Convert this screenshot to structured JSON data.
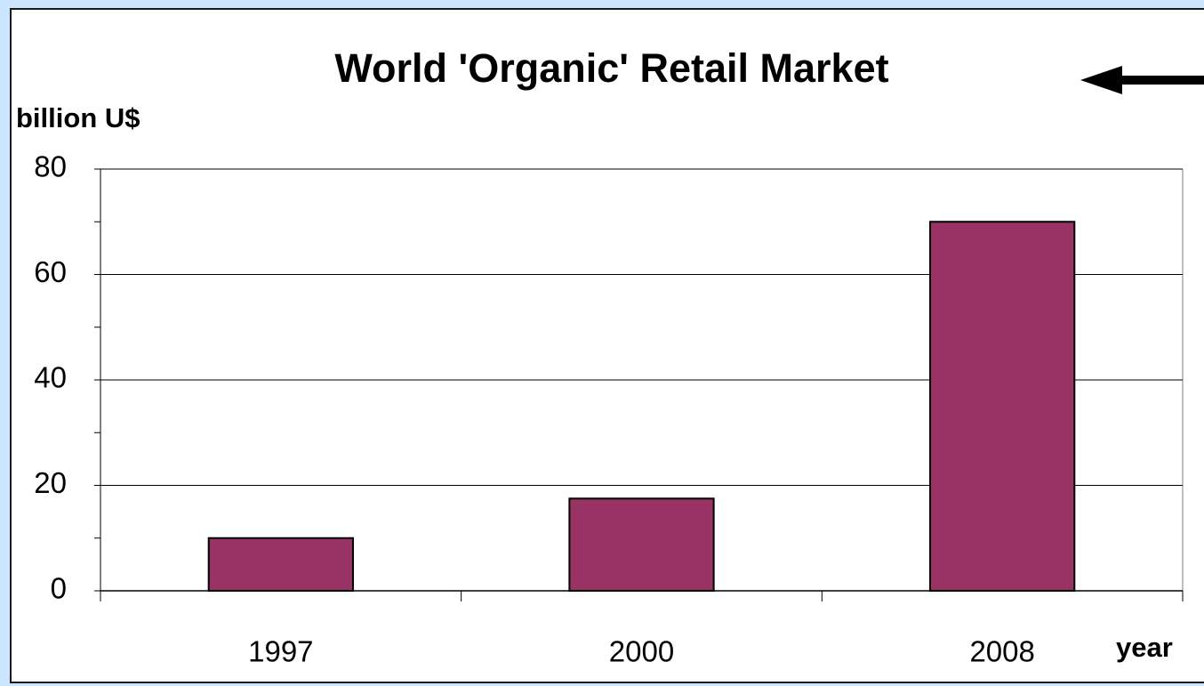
{
  "chart_data": {
    "type": "bar",
    "title": "World 'Organic' Retail Market",
    "y_label": "billion U$",
    "x_label": "year",
    "categories": [
      "1997",
      "2000",
      "2008"
    ],
    "values": [
      10,
      17.5,
      70
    ],
    "color": "#993366",
    "ylim": [
      0,
      80
    ],
    "yticks": [
      0,
      20,
      40,
      60,
      80
    ],
    "minor_yticks": [
      10,
      30,
      50,
      70
    ],
    "grid": true
  }
}
